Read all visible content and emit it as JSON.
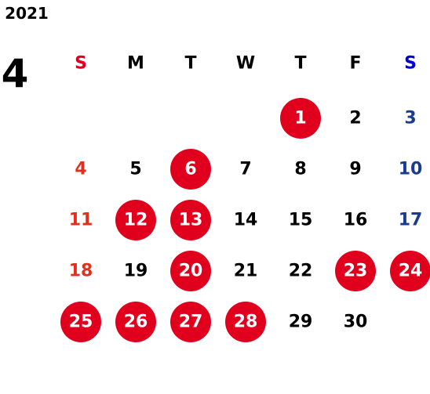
{
  "year": "2021",
  "month": "4",
  "weekdays": [
    "S",
    "M",
    "T",
    "W",
    "T",
    "F",
    "S"
  ],
  "weeks": [
    [
      null,
      null,
      null,
      null,
      {
        "day": 1,
        "circled": true
      },
      {
        "day": 2,
        "circled": false
      },
      {
        "day": 3,
        "circled": false
      }
    ],
    [
      {
        "day": 4,
        "circled": false
      },
      {
        "day": 5,
        "circled": false
      },
      {
        "day": 6,
        "circled": true
      },
      {
        "day": 7,
        "circled": false
      },
      {
        "day": 8,
        "circled": false
      },
      {
        "day": 9,
        "circled": false
      },
      {
        "day": 10,
        "circled": false
      }
    ],
    [
      {
        "day": 11,
        "circled": false
      },
      {
        "day": 12,
        "circled": true
      },
      {
        "day": 13,
        "circled": true
      },
      {
        "day": 14,
        "circled": false
      },
      {
        "day": 15,
        "circled": false
      },
      {
        "day": 16,
        "circled": false
      },
      {
        "day": 17,
        "circled": false
      }
    ],
    [
      {
        "day": 18,
        "circled": false
      },
      {
        "day": 19,
        "circled": false
      },
      {
        "day": 20,
        "circled": true
      },
      {
        "day": 21,
        "circled": false
      },
      {
        "day": 22,
        "circled": false
      },
      {
        "day": 23,
        "circled": true
      },
      {
        "day": 24,
        "circled": true
      }
    ],
    [
      {
        "day": 25,
        "circled": true
      },
      {
        "day": 26,
        "circled": true
      },
      {
        "day": 27,
        "circled": true
      },
      {
        "day": 28,
        "circled": true
      },
      {
        "day": 29,
        "circled": false
      },
      {
        "day": 30,
        "circled": false
      },
      null
    ]
  ]
}
